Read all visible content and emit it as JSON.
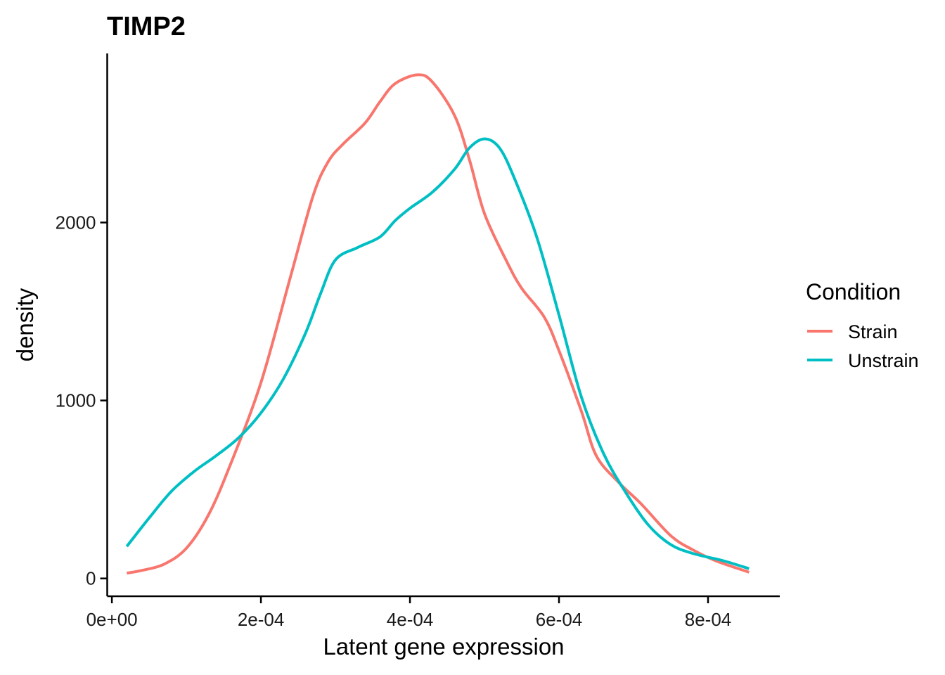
{
  "chart_data": {
    "type": "line",
    "title": "TIMP2",
    "xlabel": "Latent gene expression",
    "ylabel": "density",
    "xlim": [
      -6.25e-06,
      0.00089625
    ],
    "ylim": [
      -100,
      2950
    ],
    "x_ticks": [
      0,
      0.0002,
      0.0004,
      0.0006,
      0.0008
    ],
    "x_tick_labels": [
      "0e+00",
      "2e-04",
      "4e-04",
      "6e-04",
      "8e-04"
    ],
    "y_ticks": [
      0,
      1000,
      2000
    ],
    "y_tick_labels": [
      "0",
      "1000",
      "2000"
    ],
    "legend": {
      "title": "Condition",
      "position": "right"
    },
    "grid": false,
    "series": [
      {
        "name": "Strain",
        "color": "#F8766D",
        "x": [
          2e-05,
          4e-05,
          7e-05,
          0.0001,
          0.00013,
          0.00016,
          0.0002,
          0.00024,
          0.00027,
          0.00029,
          0.00031,
          0.00034,
          0.00036,
          0.00038,
          0.00041,
          0.00043,
          0.00046,
          0.00048,
          0.0005,
          0.00053,
          0.00055,
          0.00058,
          0.0006,
          0.00063,
          0.00065,
          0.00068,
          0.00071,
          0.00075,
          0.00078,
          0.00081,
          0.000855
        ],
        "values": [
          30,
          45,
          80,
          170,
          360,
          650,
          1100,
          1700,
          2150,
          2340,
          2440,
          2560,
          2680,
          2780,
          2830,
          2790,
          2600,
          2350,
          2050,
          1780,
          1630,
          1470,
          1280,
          940,
          690,
          540,
          420,
          240,
          160,
          100,
          35
        ]
      },
      {
        "name": "Unstrain",
        "color": "#00BFC4",
        "x": [
          2e-05,
          5e-05,
          8e-05,
          0.00011,
          0.00014,
          0.00017,
          0.0002,
          0.00023,
          0.00026,
          0.00028,
          0.0003,
          0.00033,
          0.00036,
          0.00038,
          0.0004,
          0.00043,
          0.00046,
          0.00048,
          0.0005,
          0.00052,
          0.00054,
          0.00057,
          0.0006,
          0.00063,
          0.00066,
          0.00069,
          0.00072,
          0.00075,
          0.00078,
          0.00082,
          0.000855
        ],
        "values": [
          180,
          340,
          490,
          600,
          690,
          790,
          930,
          1120,
          1380,
          1600,
          1790,
          1860,
          1920,
          2010,
          2080,
          2170,
          2300,
          2420,
          2470,
          2420,
          2250,
          1920,
          1480,
          1020,
          700,
          480,
          300,
          190,
          140,
          100,
          55
        ]
      }
    ]
  }
}
